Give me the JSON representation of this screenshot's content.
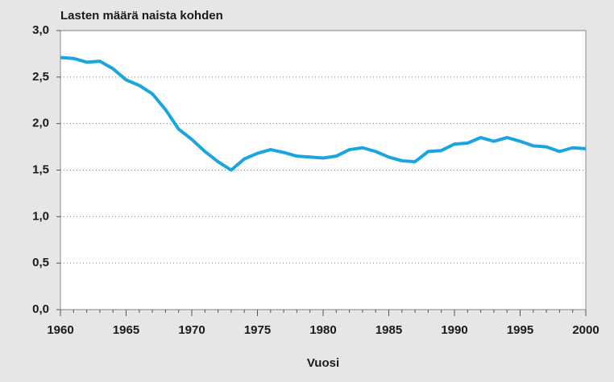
{
  "chart_data": {
    "type": "line",
    "title": "Lasten määrä naista kohden",
    "xlabel": "Vuosi",
    "x": [
      1960,
      1961,
      1962,
      1963,
      1964,
      1965,
      1966,
      1967,
      1968,
      1969,
      1970,
      1971,
      1972,
      1973,
      1974,
      1975,
      1976,
      1977,
      1978,
      1979,
      1980,
      1981,
      1982,
      1983,
      1984,
      1985,
      1986,
      1987,
      1988,
      1989,
      1990,
      1991,
      1992,
      1993,
      1994,
      1995,
      1996,
      1997,
      1998,
      1999,
      2000
    ],
    "series": [
      {
        "color": "#1aa5e0",
        "values": [
          2.71,
          2.7,
          2.66,
          2.67,
          2.59,
          2.47,
          2.41,
          2.32,
          2.15,
          1.94,
          1.83,
          1.7,
          1.59,
          1.5,
          1.62,
          1.68,
          1.72,
          1.69,
          1.65,
          1.64,
          1.63,
          1.65,
          1.72,
          1.74,
          1.7,
          1.64,
          1.6,
          1.59,
          1.7,
          1.71,
          1.78,
          1.79,
          1.85,
          1.81,
          1.85,
          1.81,
          1.76,
          1.75,
          1.7,
          1.74,
          1.73
        ]
      }
    ],
    "xlim": [
      1960,
      2000
    ],
    "xticks": [
      1960,
      1965,
      1970,
      1975,
      1980,
      1985,
      1990,
      1995,
      2000
    ],
    "ylim": [
      0,
      3
    ],
    "yticks": [
      {
        "value": 0,
        "label": "0,0"
      },
      {
        "value": 0.5,
        "label": "0,5"
      },
      {
        "value": 1,
        "label": "1,0"
      },
      {
        "value": 1.5,
        "label": "1,5"
      },
      {
        "value": 2,
        "label": "2,0"
      },
      {
        "value": 2.5,
        "label": "2,5"
      },
      {
        "value": 3,
        "label": "3,0"
      }
    ],
    "grid": true
  }
}
